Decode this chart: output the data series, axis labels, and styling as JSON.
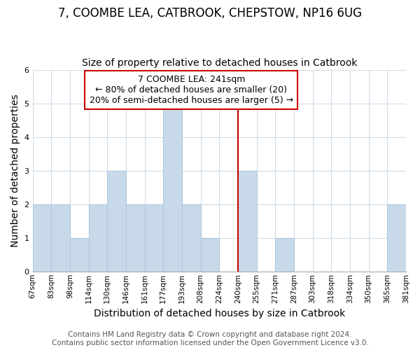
{
  "title": "7, COOMBE LEA, CATBROOK, CHEPSTOW, NP16 6UG",
  "subtitle": "Size of property relative to detached houses in Catbrook",
  "xlabel": "Distribution of detached houses by size in Catbrook",
  "ylabel": "Number of detached properties",
  "bin_labels": [
    "67sqm",
    "83sqm",
    "98sqm",
    "114sqm",
    "130sqm",
    "146sqm",
    "161sqm",
    "177sqm",
    "193sqm",
    "208sqm",
    "224sqm",
    "240sqm",
    "255sqm",
    "271sqm",
    "287sqm",
    "303sqm",
    "318sqm",
    "334sqm",
    "350sqm",
    "365sqm",
    "381sqm"
  ],
  "bin_counts": [
    2,
    2,
    1,
    2,
    3,
    2,
    2,
    5,
    2,
    1,
    0,
    3,
    0,
    1,
    0,
    0,
    0,
    0,
    0,
    2
  ],
  "bar_color": "#c8daea",
  "bar_edge_color": "#b0c8e0",
  "vline_x_index": 11,
  "vline_color": "#cc0000",
  "annotation_text": "7 COOMBE LEA: 241sqm\n← 80% of detached houses are smaller (20)\n20% of semi-detached houses are larger (5) →",
  "annotation_box_color": "#ffffff",
  "annotation_box_edge": "#cc0000",
  "ylim": [
    0,
    6
  ],
  "yticks": [
    0,
    1,
    2,
    3,
    4,
    5,
    6
  ],
  "footer_line1": "Contains HM Land Registry data © Crown copyright and database right 2024.",
  "footer_line2": "Contains public sector information licensed under the Open Government Licence v3.0.",
  "background_color": "#ffffff",
  "grid_color": "#d0dce8",
  "title_fontsize": 12,
  "subtitle_fontsize": 10,
  "axis_label_fontsize": 10,
  "tick_fontsize": 7.5,
  "annotation_fontsize": 9,
  "footer_fontsize": 7.5
}
